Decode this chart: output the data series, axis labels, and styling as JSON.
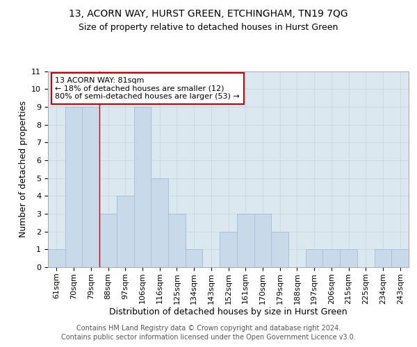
{
  "title": "13, ACORN WAY, HURST GREEN, ETCHINGHAM, TN19 7QG",
  "subtitle": "Size of property relative to detached houses in Hurst Green",
  "xlabel": "Distribution of detached houses by size in Hurst Green",
  "ylabel": "Number of detached properties",
  "footer_line1": "Contains HM Land Registry data © Crown copyright and database right 2024.",
  "footer_line2": "Contains public sector information licensed under the Open Government Licence v3.0.",
  "categories": [
    "61sqm",
    "70sqm",
    "79sqm",
    "88sqm",
    "97sqm",
    "106sqm",
    "116sqm",
    "125sqm",
    "134sqm",
    "143sqm",
    "152sqm",
    "161sqm",
    "170sqm",
    "179sqm",
    "188sqm",
    "197sqm",
    "206sqm",
    "215sqm",
    "225sqm",
    "234sqm",
    "243sqm"
  ],
  "values": [
    1,
    9,
    9,
    3,
    4,
    9,
    5,
    3,
    1,
    0,
    2,
    3,
    3,
    2,
    0,
    1,
    1,
    1,
    0,
    1,
    1
  ],
  "bar_color": "#c8daea",
  "bar_edge_color": "#a8c0d8",
  "annotation_text": "13 ACORN WAY: 81sqm\n← 18% of detached houses are smaller (12)\n80% of semi-detached houses are larger (53) →",
  "annotation_box_color": "#ffffff",
  "annotation_box_edge_color": "#cc0000",
  "property_line_x": 2.5,
  "property_line_color": "#cc0000",
  "ylim": [
    0,
    11
  ],
  "yticks": [
    0,
    1,
    2,
    3,
    4,
    5,
    6,
    7,
    8,
    9,
    10,
    11
  ],
  "grid_color": "#c8d0dc",
  "background_color": "#ffffff",
  "plot_bg_color": "#dce8f0",
  "title_fontsize": 10,
  "subtitle_fontsize": 9,
  "axis_label_fontsize": 9,
  "tick_fontsize": 8,
  "annotation_fontsize": 8,
  "footer_fontsize": 7
}
